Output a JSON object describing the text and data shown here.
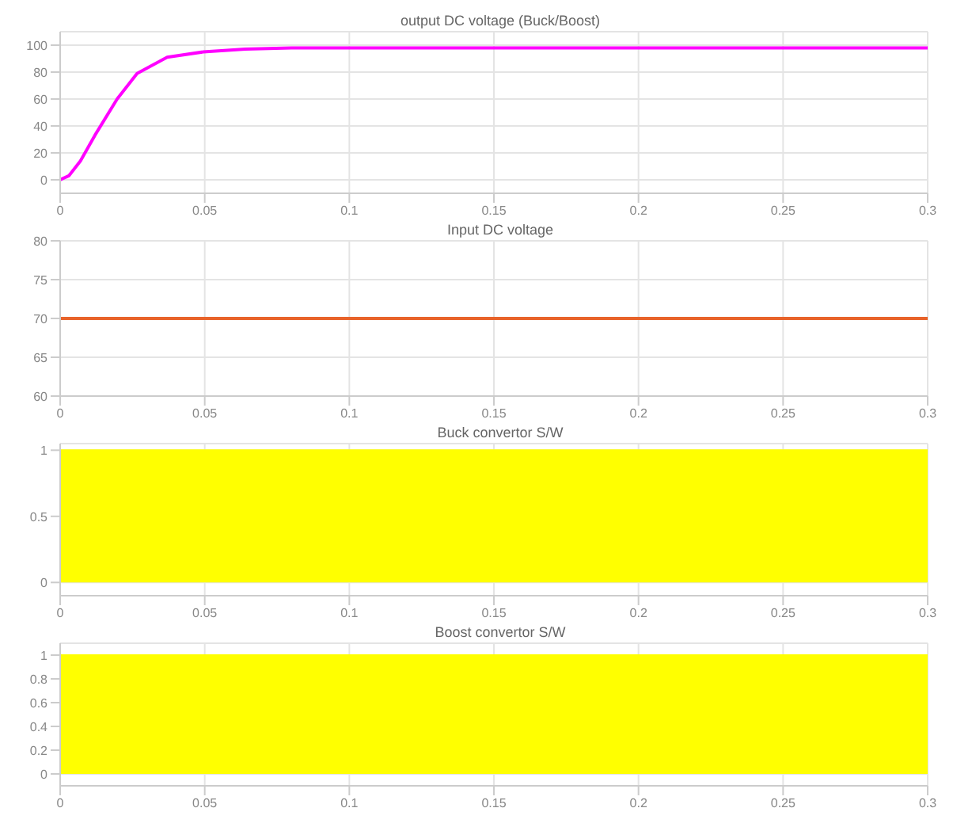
{
  "chart_data": [
    {
      "type": "line",
      "title": "output DC voltage (Buck/Boost)",
      "x": [
        0,
        0.003,
        0.007,
        0.012,
        0.0197,
        0.0266,
        0.037,
        0.0495,
        0.064,
        0.08,
        0.1,
        0.3
      ],
      "series": [
        {
          "color": "#ff00ff",
          "values": [
            0,
            3,
            14,
            33,
            60,
            79,
            91,
            95,
            97,
            98,
            98,
            98
          ]
        }
      ],
      "xlim": [
        0,
        0.3
      ],
      "xticks": [
        0,
        0.05,
        0.1,
        0.15,
        0.2,
        0.25,
        0.3
      ],
      "ylim": [
        -10,
        110
      ],
      "yticks": [
        0,
        20,
        40,
        60,
        80,
        100
      ],
      "grid": true
    },
    {
      "type": "line",
      "title": "Input DC voltage",
      "x": [
        0,
        0.3
      ],
      "series": [
        {
          "color": "#e8632a",
          "values": [
            70,
            70
          ]
        }
      ],
      "xlim": [
        0,
        0.3
      ],
      "xticks": [
        0,
        0.05,
        0.1,
        0.15,
        0.2,
        0.25,
        0.3
      ],
      "ylim": [
        60,
        80
      ],
      "yticks": [
        60,
        65,
        70,
        75,
        80
      ],
      "grid": true
    },
    {
      "type": "area",
      "title": "Buck convertor S/W",
      "x": [
        0,
        0.3
      ],
      "series": [
        {
          "color": "#ffff00",
          "values": [
            1,
            1
          ]
        }
      ],
      "xlim": [
        0,
        0.3
      ],
      "xticks": [
        0,
        0.05,
        0.1,
        0.15,
        0.2,
        0.25,
        0.3
      ],
      "ylim": [
        -0.1,
        1.05
      ],
      "yticks": [
        0,
        0.5,
        1
      ],
      "grid": true
    },
    {
      "type": "area",
      "title": "Boost convertor S/W",
      "x": [
        0,
        0.3
      ],
      "series": [
        {
          "color": "#ffff00",
          "values": [
            1,
            1
          ]
        }
      ],
      "xlim": [
        0,
        0.3
      ],
      "xticks": [
        0,
        0.05,
        0.1,
        0.15,
        0.2,
        0.25,
        0.3
      ],
      "ylim": [
        -0.1,
        1.1
      ],
      "yticks": [
        0,
        0.2,
        0.4,
        0.6,
        0.8,
        1
      ],
      "grid": true
    }
  ]
}
